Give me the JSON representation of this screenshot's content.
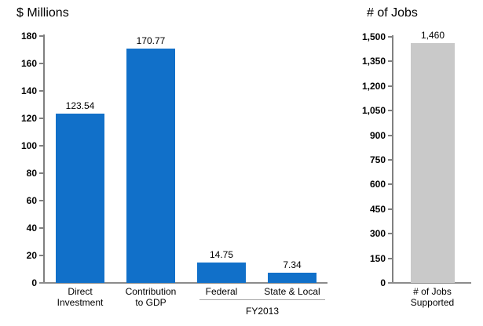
{
  "figure": {
    "background": "#FFFFFF",
    "left_chart_title": "$ Millions",
    "right_chart_title": "# of Jobs"
  },
  "colors": {
    "blue_bar": "#1170C9",
    "gray_bar": "#C9C9C9",
    "axis_line": "#808080",
    "baseline": "#8C8C8C",
    "bracket_line": "#A6A6A6",
    "text": "#000000"
  },
  "chart_data": [
    {
      "id": "dollars-millions",
      "type": "bar",
      "title": "$ Millions",
      "categories": [
        "Direct Investment",
        "Contribution to GDP",
        "Federal",
        "State & Local"
      ],
      "category_label_lines": [
        [
          "Direct",
          "Investment"
        ],
        [
          "Contribution",
          "to GDP"
        ],
        [
          "Federal"
        ],
        [
          "State & Local"
        ]
      ],
      "values": [
        123.54,
        170.77,
        14.75,
        7.34
      ],
      "value_labels": [
        "123.54",
        "170.77",
        "14.75",
        "7.34"
      ],
      "bar_color": "#1170C9",
      "ylim": [
        0,
        180
      ],
      "ytick_step": 20,
      "ytick_labels": [
        "0",
        "20",
        "40",
        "60",
        "80",
        "100",
        "120",
        "140",
        "160",
        "180"
      ],
      "xlabel": "",
      "ylabel": "",
      "grid": false,
      "legend": "none",
      "group_annotation": {
        "label": "FY2013",
        "from_category_index": 2,
        "to_category_index": 3
      }
    },
    {
      "id": "number-of-jobs",
      "type": "bar",
      "title": "# of Jobs",
      "categories": [
        "# of Jobs Supported"
      ],
      "category_label_lines": [
        [
          "# of Jobs",
          "Supported"
        ]
      ],
      "values": [
        1460
      ],
      "value_labels": [
        "1,460"
      ],
      "bar_color": "#C9C9C9",
      "ylim": [
        0,
        1500
      ],
      "ytick_step": 150,
      "ytick_labels": [
        "0",
        "150",
        "300",
        "450",
        "600",
        "750",
        "900",
        "1,050",
        "1,200",
        "1,350",
        "1,500"
      ],
      "xlabel": "",
      "ylabel": "",
      "grid": false,
      "legend": "none",
      "group_annotation": null
    }
  ]
}
